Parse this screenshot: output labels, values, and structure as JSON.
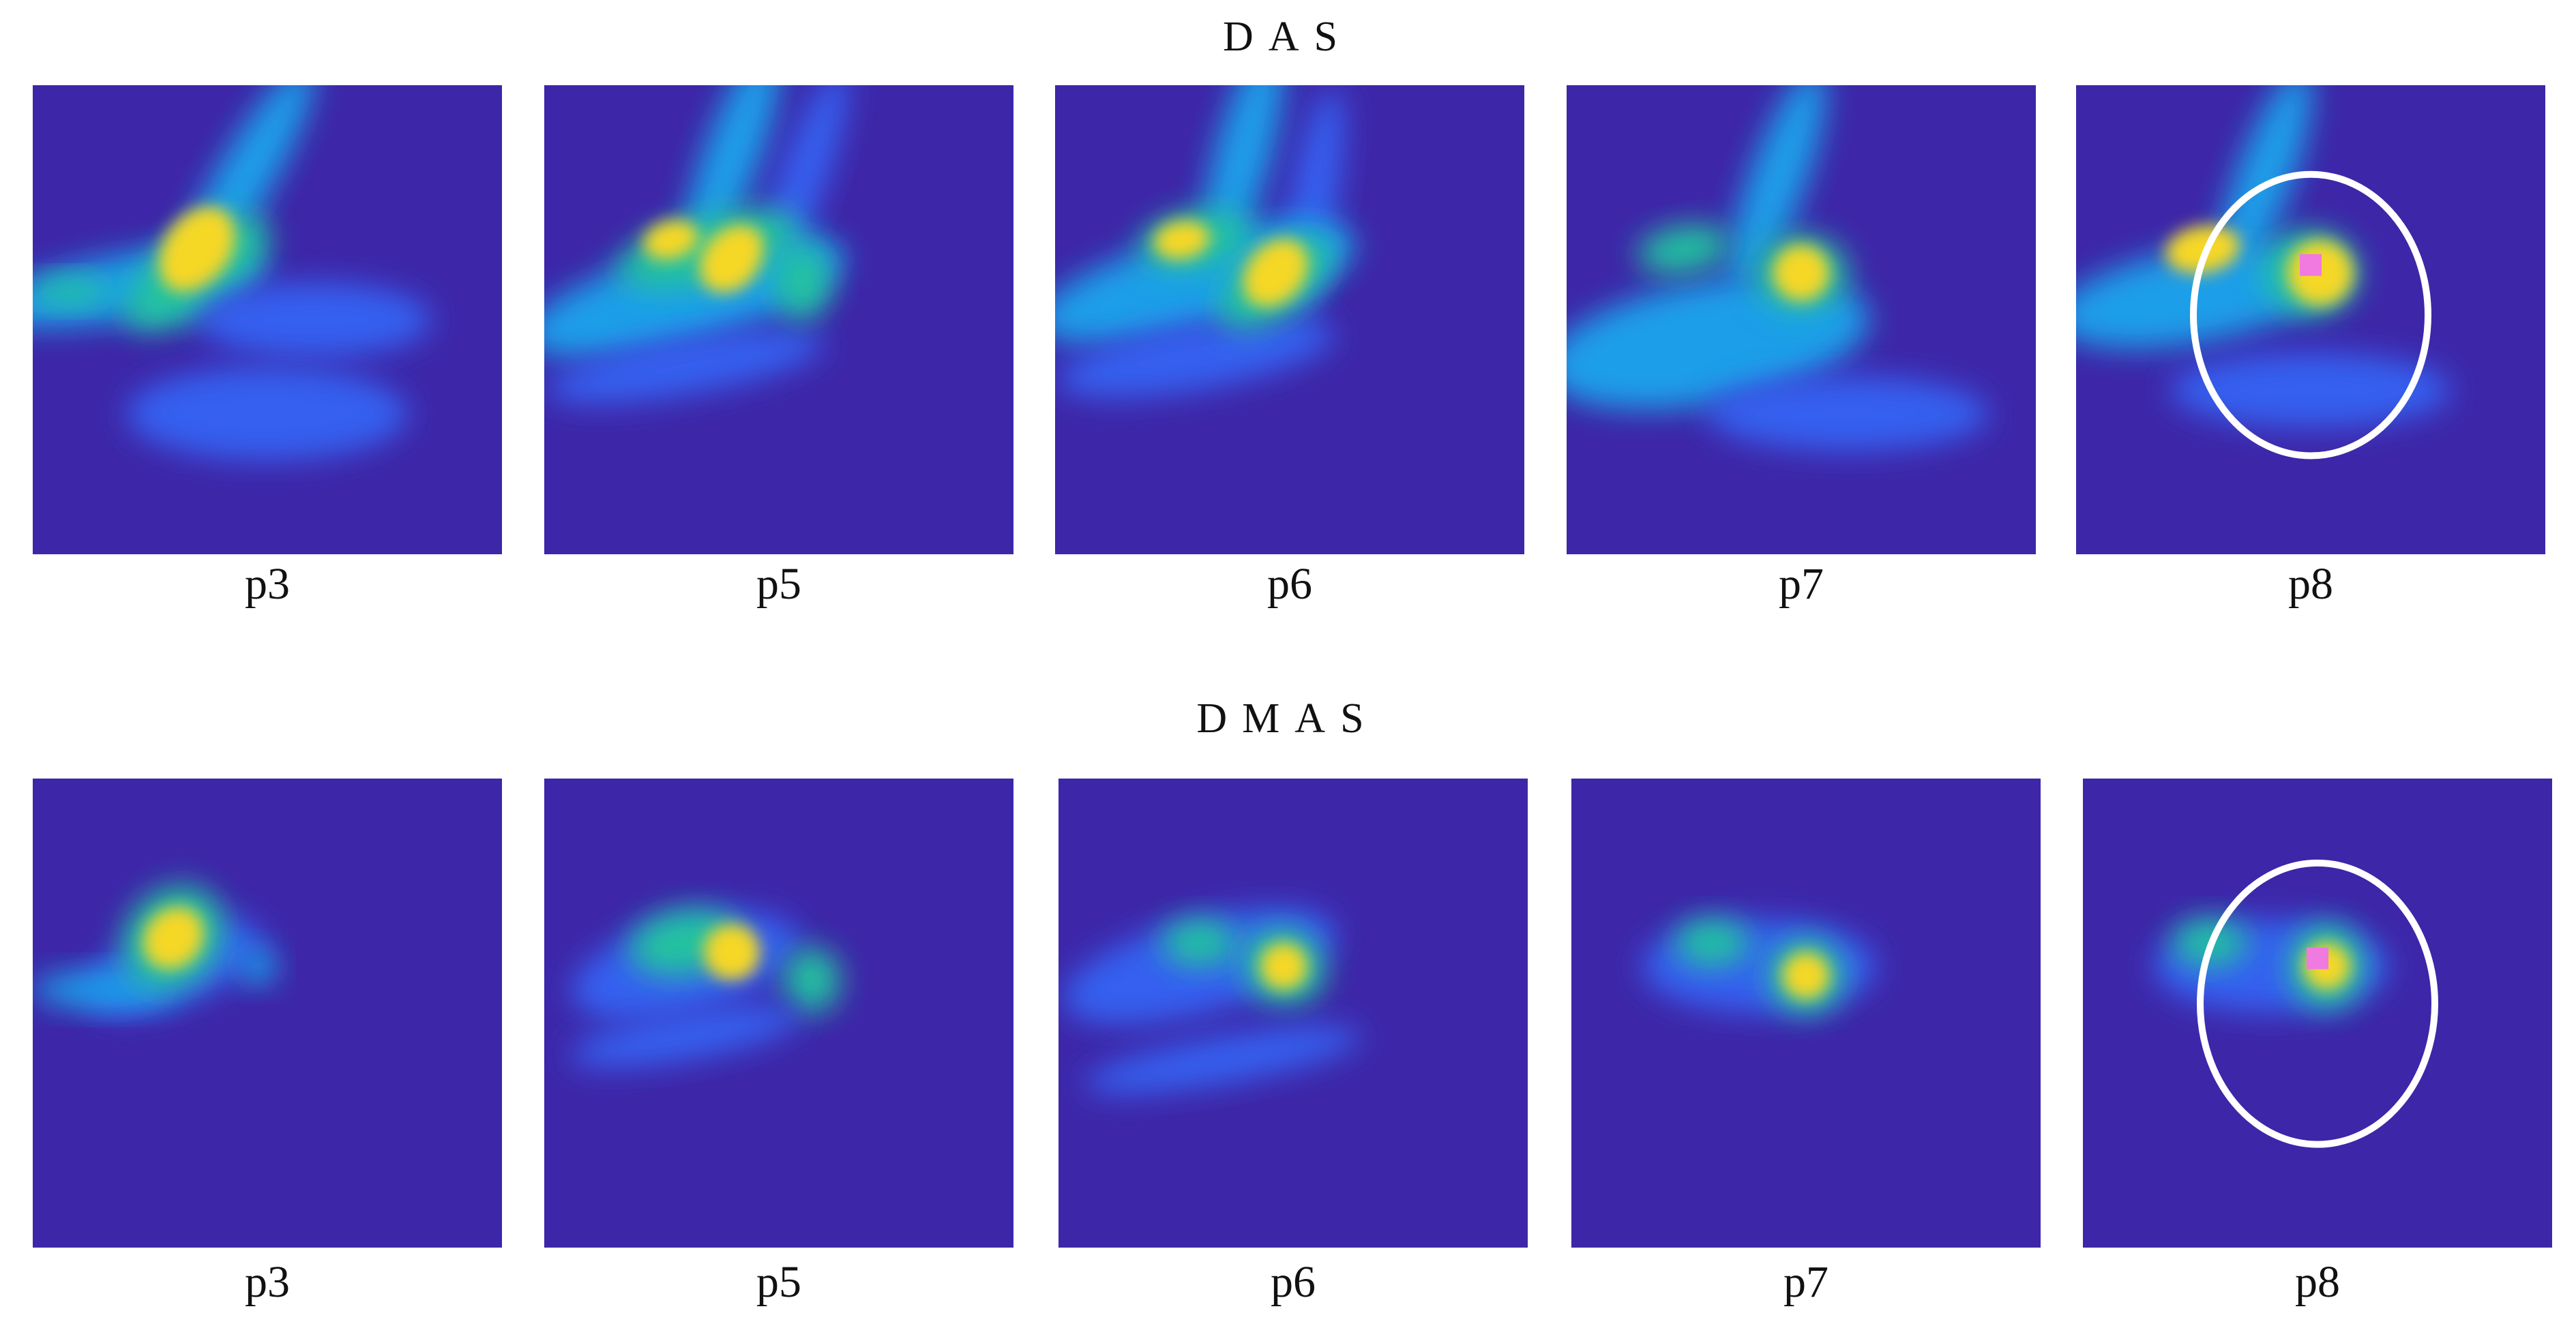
{
  "rows": [
    {
      "title": "DAS",
      "panels": [
        {
          "label": "p3"
        },
        {
          "label": "p5"
        },
        {
          "label": "p6"
        },
        {
          "label": "p7"
        },
        {
          "label": "p8"
        }
      ]
    },
    {
      "title": "DMAS",
      "panels": [
        {
          "label": "p3"
        },
        {
          "label": "p5"
        },
        {
          "label": "p6"
        },
        {
          "label": "p7"
        },
        {
          "label": "p8"
        }
      ]
    }
  ]
}
